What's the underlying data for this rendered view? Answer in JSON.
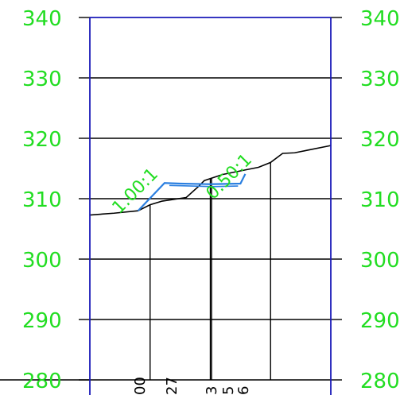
{
  "colors": {
    "background": "#ffffff",
    "frame": "#1a1ab8",
    "grid": "#000000",
    "elevation_text": "#22dd22",
    "design_line": "#2b7fe0",
    "slope_text": "#22dd22"
  },
  "elevation_axis": {
    "min": 280,
    "max": 340,
    "step": 10,
    "labels_left": [
      "340",
      "330",
      "320",
      "310",
      "300",
      "290",
      "280"
    ],
    "labels_right": [
      "340",
      "330",
      "320",
      "310",
      "300",
      "290",
      "280"
    ]
  },
  "station_range": {
    "min": 0,
    "max": 40
  },
  "grid": {
    "vertical_stations": [
      10,
      20,
      30
    ],
    "partial_vertical_stations": [
      30.0
    ]
  },
  "ground_profile": [
    [
      0,
      307.3
    ],
    [
      4,
      307.6
    ],
    [
      8,
      308.0
    ],
    [
      10,
      309.0
    ],
    [
      12,
      309.6
    ],
    [
      16,
      310.2
    ],
    [
      18,
      312.0
    ],
    [
      19,
      313.0
    ],
    [
      22,
      314.0
    ],
    [
      26,
      314.8
    ],
    [
      28,
      315.2
    ],
    [
      30,
      316.0
    ],
    [
      32,
      317.5
    ],
    [
      34,
      317.6
    ],
    [
      36,
      318.0
    ],
    [
      40,
      318.8
    ]
  ],
  "design_section": {
    "outline": [
      [
        8,
        308.0
      ],
      [
        12.4,
        312.6
      ],
      [
        15,
        312.5
      ],
      [
        20,
        312.4
      ],
      [
        25,
        312.5
      ],
      [
        25.8,
        314.1
      ]
    ],
    "inner": [
      [
        13.2,
        312.2
      ],
      [
        20.4,
        312.0
      ],
      [
        24.6,
        312.1
      ]
    ]
  },
  "slope_labels": [
    {
      "text": "1.00:1"
    },
    {
      "text": "0.50:1"
    }
  ],
  "station_labels": [
    "00",
    "27",
    "3",
    "5",
    "6"
  ]
}
